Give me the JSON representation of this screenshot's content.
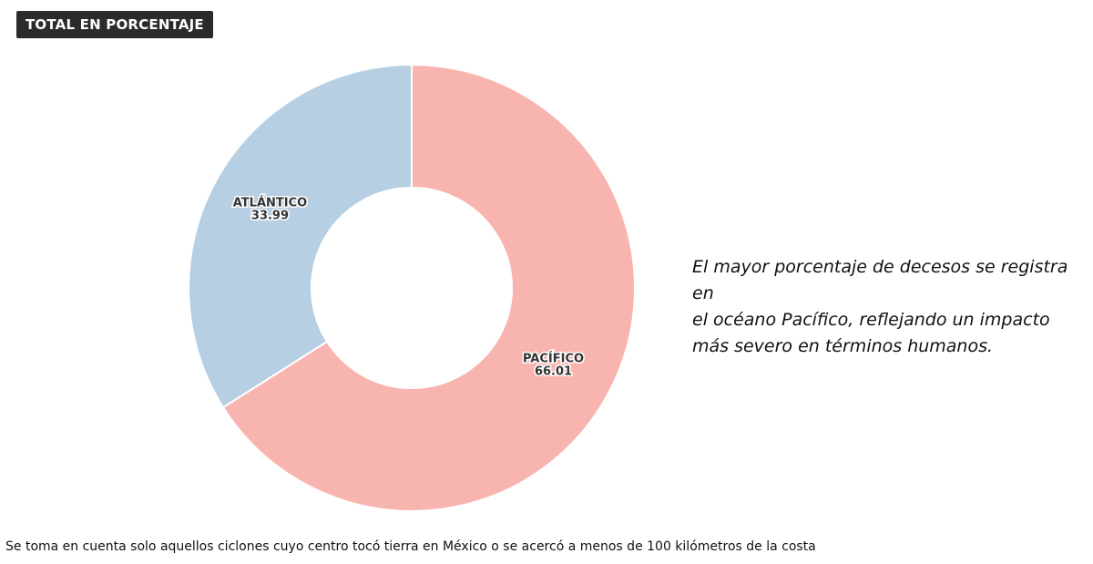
{
  "chart_data": {
    "type": "pie",
    "title": "TOTAL EN PORCENTAJE",
    "slices": [
      {
        "label": "PACÍFICO",
        "value": 66.01,
        "display": "66.01",
        "color": "#f8b5b0"
      },
      {
        "label": "ATLÁNTICO",
        "value": 33.99,
        "display": "33.99",
        "color": "#b7cfe3"
      }
    ],
    "donut": true,
    "legend": "none"
  },
  "annotation": {
    "lines": [
      "El mayor porcentaje de decesos se registra en",
      "el océano Pacífico, reflejando un impacto",
      "más severo en términos humanos."
    ]
  },
  "footnote": "Se toma en cuenta solo aquellos ciclones cuyo centro tocó tierra en México o se acercó a menos de 100 kilómetros de la costa"
}
